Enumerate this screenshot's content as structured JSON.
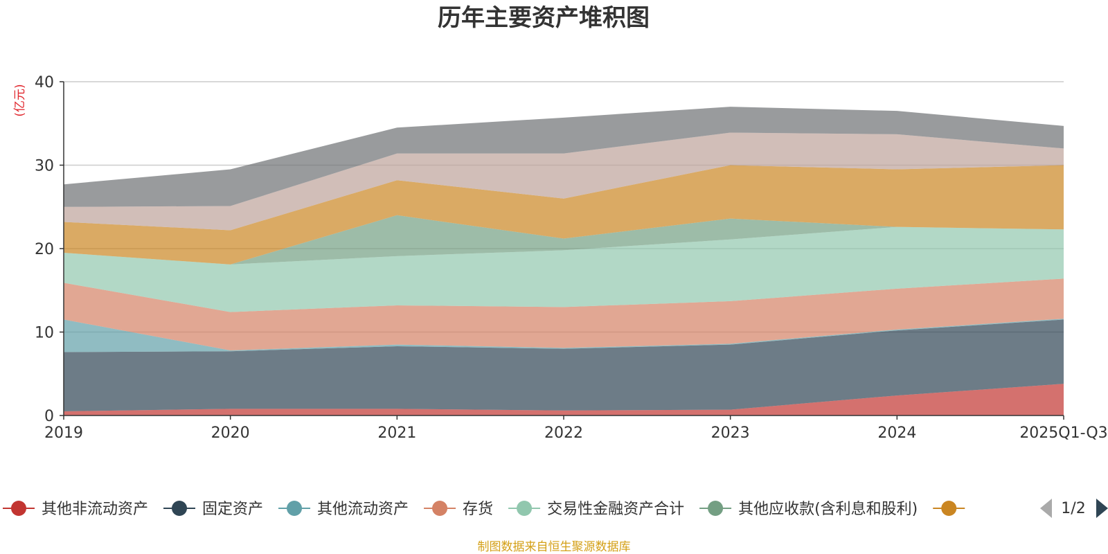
{
  "chart_data": {
    "type": "area",
    "stacked": true,
    "title": "历年主要资产堆积图",
    "ylabel": "(亿元)",
    "xlabel": "",
    "categories": [
      "2019",
      "2020",
      "2021",
      "2022",
      "2023",
      "2024",
      "2025Q1-Q3"
    ],
    "ylim": [
      0,
      40
    ],
    "yticks": [
      0,
      10,
      20,
      30,
      40
    ],
    "grid": true,
    "series": [
      {
        "name": "其他非流动资产",
        "color": "#c23531",
        "values": [
          0.5,
          0.8,
          0.8,
          0.6,
          0.7,
          2.4,
          3.8
        ]
      },
      {
        "name": "固定资产",
        "color": "#2f4554",
        "values": [
          7.1,
          6.9,
          7.5,
          7.4,
          7.8,
          7.8,
          7.7
        ]
      },
      {
        "name": "其他流动资产",
        "color": "#61a0a8",
        "values": [
          3.9,
          0.1,
          0.2,
          0.1,
          0.1,
          0.1,
          0.1
        ]
      },
      {
        "name": "存货",
        "color": "#d48265",
        "values": [
          4.4,
          4.6,
          4.7,
          4.9,
          5.1,
          4.9,
          4.8
        ]
      },
      {
        "name": "交易性金融资产合计",
        "color": "#91c7ae",
        "values": [
          3.6,
          5.7,
          5.9,
          6.8,
          7.4,
          7.4,
          5.9
        ]
      },
      {
        "name": "其他应收款(含利息和股利)",
        "color": "#749f83",
        "values": [
          0.0,
          0.0,
          4.9,
          1.4,
          2.5,
          0.0,
          0.0
        ]
      },
      {
        "name": "",
        "color": "#ca8622",
        "values": [
          3.7,
          4.1,
          4.2,
          4.8,
          6.4,
          6.9,
          7.7
        ]
      },
      {
        "name": "",
        "color": "#bda29a",
        "values": [
          1.8,
          2.9,
          3.2,
          5.4,
          3.9,
          4.2,
          2.0
        ]
      },
      {
        "name": "",
        "color": "#6e7074",
        "values": [
          2.7,
          4.4,
          3.1,
          4.3,
          3.1,
          2.8,
          2.7
        ]
      }
    ],
    "legend": {
      "visible_count": 7,
      "page": "1/2",
      "placement": "bottom"
    }
  },
  "source_note": "制图数据来自恒生聚源数据库"
}
